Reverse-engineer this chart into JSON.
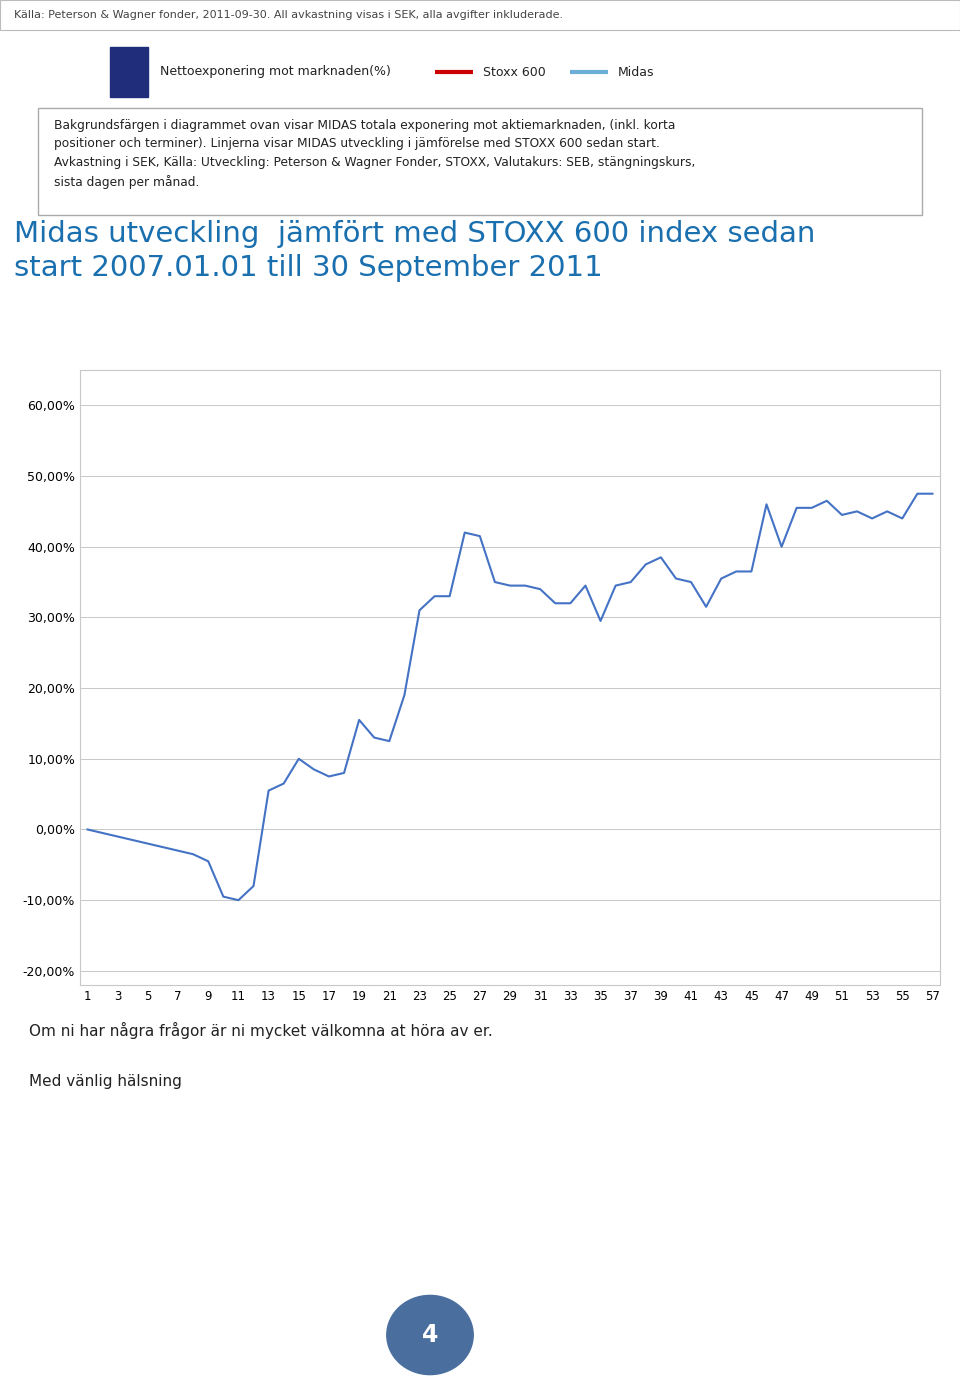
{
  "title_line1": "Midas utveckling  jämfört med STOXX 600 index sedan",
  "title_line2": "start 2007.01.01 till 30 September 2011",
  "header_text": "Källa: Peterson & Wagner fonder, 2011-09-30. All avkastning visas i SEK, alla avgifter inkluderade.",
  "box_lines": [
    "Bakgrundsfärgen i diagrammet ovan visar MIDAS totala exponering mot aktiemarknaden, (inkl. korta",
    "positioner och terminer). Linjerna visar MIDAS utveckling i jämförelse med STOXX 600 sedan start.",
    "Avkastning i SEK, Källa: Utveckling: Peterson & Wagner Fonder, STOXX, Valutakurs: SEB, stängningskurs,",
    "sista dagen per månad."
  ],
  "legend_square_label": "Nettoexponering mot marknaden(%)",
  "legend_square_color": "#1f2d7a",
  "legend_stoxx_label": "Stoxx 600",
  "legend_stoxx_color": "#cc0000",
  "legend_midas_label": "Midas",
  "legend_midas_color": "#6baed6",
  "footer_text1": "Om ni har några frågor är ni mycket välkomna at höra av er.",
  "footer_text2": "Med vänlig hälsning",
  "page_number": "4",
  "page_circle_color": "#4a6f9f",
  "midas_values": [
    0.0,
    -0.5,
    -1.0,
    -1.5,
    -2.0,
    -2.5,
    -3.0,
    -3.5,
    -4.5,
    -9.5,
    -10.0,
    -8.0,
    5.5,
    6.5,
    10.0,
    8.5,
    7.5,
    8.0,
    15.5,
    13.0,
    12.5,
    19.0,
    31.0,
    33.0,
    33.0,
    42.0,
    41.5,
    35.0,
    34.5,
    34.5,
    34.0,
    32.0,
    32.0,
    34.5,
    29.5,
    34.5,
    35.0,
    37.5,
    38.5,
    35.5,
    35.0,
    31.5,
    35.5,
    36.5,
    36.5,
    46.0,
    40.0,
    45.5,
    45.5,
    46.5,
    44.5,
    45.0,
    44.0,
    45.0,
    44.0,
    47.5,
    47.5
  ],
  "x_ticks": [
    1,
    3,
    5,
    7,
    9,
    11,
    13,
    15,
    17,
    19,
    21,
    23,
    25,
    27,
    29,
    31,
    33,
    35,
    37,
    39,
    41,
    43,
    45,
    47,
    49,
    51,
    53,
    55,
    57
  ],
  "ylim": [
    -22,
    65
  ],
  "yticks": [
    -20,
    -10,
    0,
    10,
    20,
    30,
    40,
    50,
    60
  ],
  "chart_line_color": "#4472c4",
  "chart_bg_color": "#ffffff",
  "grid_color": "#c8c8c8",
  "box_border_color": "#aaaaaa",
  "title_color": "#1a6faf",
  "bg_color": "#ffffff"
}
